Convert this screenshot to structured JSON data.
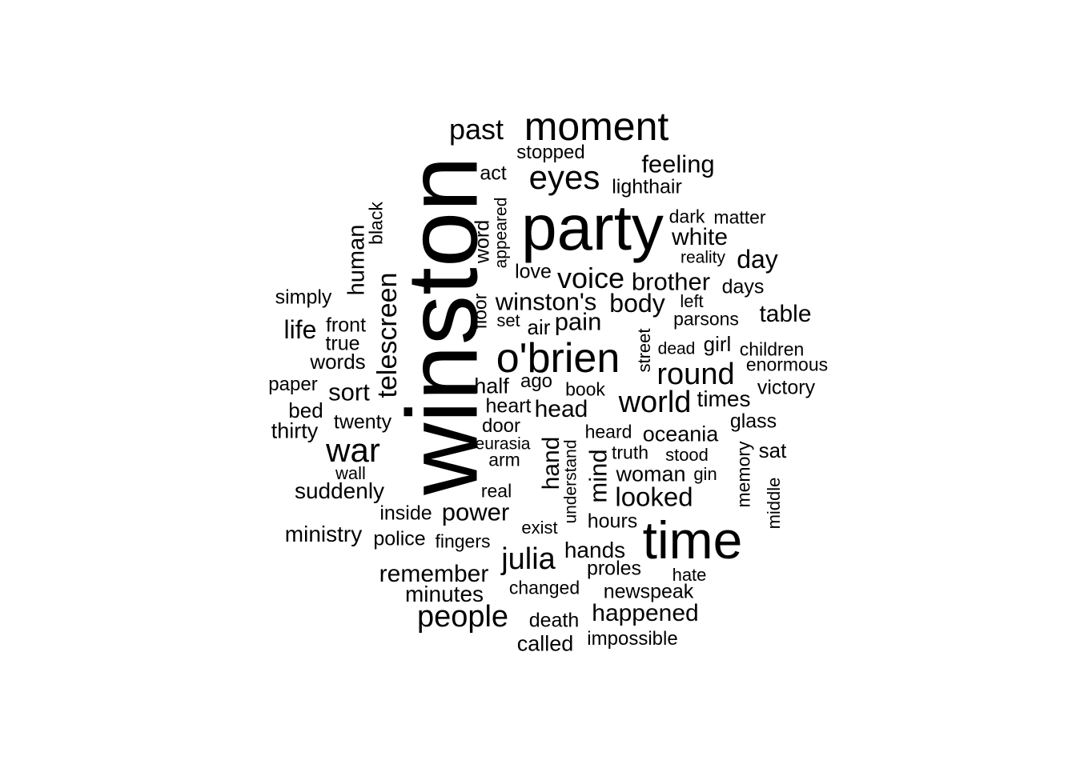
{
  "words": [
    {
      "text": "winston",
      "weight": 100,
      "rotated": true
    },
    {
      "text": "party",
      "weight": 60
    },
    {
      "text": "time",
      "weight": 55
    },
    {
      "text": "moment",
      "weight": 45
    },
    {
      "text": "o'brien",
      "weight": 48
    },
    {
      "text": "eyes",
      "weight": 38
    },
    {
      "text": "past",
      "weight": 32
    },
    {
      "text": "war",
      "weight": 38
    },
    {
      "text": "telescreen",
      "weight": 30,
      "rotated": true
    },
    {
      "text": "people",
      "weight": 34
    },
    {
      "text": "julia",
      "weight": 33
    },
    {
      "text": "world",
      "weight": 34
    },
    {
      "text": "round",
      "weight": 34
    },
    {
      "text": "voice",
      "weight": 32
    },
    {
      "text": "feeling",
      "weight": 28
    },
    {
      "text": "lighthair",
      "weight": 22
    },
    {
      "text": "stopped",
      "weight": 22
    },
    {
      "text": "act",
      "weight": 22
    },
    {
      "text": "dark",
      "weight": 21
    },
    {
      "text": "matter",
      "weight": 20
    },
    {
      "text": "white",
      "weight": 27
    },
    {
      "text": "reality",
      "weight": 19
    },
    {
      "text": "day",
      "weight": 29
    },
    {
      "text": "brother",
      "weight": 28
    },
    {
      "text": "days",
      "weight": 22
    },
    {
      "text": "body",
      "weight": 29
    },
    {
      "text": "left",
      "weight": 20
    },
    {
      "text": "parsons",
      "weight": 21
    },
    {
      "text": "table",
      "weight": 27
    },
    {
      "text": "winston's",
      "weight": 28
    },
    {
      "text": "pain",
      "weight": 28
    },
    {
      "text": "air",
      "weight": 24
    },
    {
      "text": "set",
      "weight": 20
    },
    {
      "text": "floor",
      "weight": 21,
      "rotated": true
    },
    {
      "text": "love",
      "weight": 22
    },
    {
      "text": "word",
      "weight": 22,
      "rotated": true
    },
    {
      "text": "appeared",
      "weight": 19,
      "rotated": true
    },
    {
      "text": "human",
      "weight": 26,
      "rotated": true
    },
    {
      "text": "black",
      "weight": 21,
      "rotated": true
    },
    {
      "text": "simply",
      "weight": 22
    },
    {
      "text": "life",
      "weight": 28
    },
    {
      "text": "front",
      "weight": 23
    },
    {
      "text": "true",
      "weight": 23
    },
    {
      "text": "words",
      "weight": 23
    },
    {
      "text": "paper",
      "weight": 21
    },
    {
      "text": "sort",
      "weight": 28
    },
    {
      "text": "bed",
      "weight": 24
    },
    {
      "text": "thirty",
      "weight": 24
    },
    {
      "text": "twenty",
      "weight": 23
    },
    {
      "text": "street",
      "weight": 20,
      "rotated": true
    },
    {
      "text": "dead",
      "weight": 19
    },
    {
      "text": "girl",
      "weight": 23
    },
    {
      "text": "children",
      "weight": 20
    },
    {
      "text": "enormous",
      "weight": 21
    },
    {
      "text": "victory",
      "weight": 23
    },
    {
      "text": "times",
      "weight": 25
    },
    {
      "text": "book",
      "weight": 21
    },
    {
      "text": "half",
      "weight": 24
    },
    {
      "text": "ago",
      "weight": 22
    },
    {
      "text": "heart",
      "weight": 22
    },
    {
      "text": "head",
      "weight": 27
    },
    {
      "text": "door",
      "weight": 22
    },
    {
      "text": "eurasia",
      "weight": 19
    },
    {
      "text": "arm",
      "weight": 21
    },
    {
      "text": "hand",
      "weight": 27,
      "rotated": true
    },
    {
      "text": "understand",
      "weight": 19,
      "rotated": true
    },
    {
      "text": "mind",
      "weight": 28,
      "rotated": true
    },
    {
      "text": "heard",
      "weight": 21
    },
    {
      "text": "oceania",
      "weight": 24
    },
    {
      "text": "glass",
      "weight": 23
    },
    {
      "text": "truth",
      "weight": 21
    },
    {
      "text": "stood",
      "weight": 20
    },
    {
      "text": "sat",
      "weight": 23
    },
    {
      "text": "memory",
      "weight": 21,
      "rotated": true
    },
    {
      "text": "woman",
      "weight": 24
    },
    {
      "text": "gin",
      "weight": 20
    },
    {
      "text": "middle",
      "weight": 20,
      "rotated": true
    },
    {
      "text": "wall",
      "weight": 20
    },
    {
      "text": "suddenly",
      "weight": 25
    },
    {
      "text": "real",
      "weight": 21
    },
    {
      "text": "looked",
      "weight": 29
    },
    {
      "text": "power",
      "weight": 28
    },
    {
      "text": "inside",
      "weight": 22
    },
    {
      "text": "exist",
      "weight": 20
    },
    {
      "text": "hours",
      "weight": 22
    },
    {
      "text": "ministry",
      "weight": 25
    },
    {
      "text": "police",
      "weight": 22
    },
    {
      "text": "fingers",
      "weight": 21
    },
    {
      "text": "hands",
      "weight": 25
    },
    {
      "text": "remember",
      "weight": 27
    },
    {
      "text": "proles",
      "weight": 22
    },
    {
      "text": "hate",
      "weight": 20
    },
    {
      "text": "minutes",
      "weight": 25
    },
    {
      "text": "changed",
      "weight": 21
    },
    {
      "text": "newspeak",
      "weight": 22
    },
    {
      "text": "happened",
      "weight": 27
    },
    {
      "text": "death",
      "weight": 22
    },
    {
      "text": "called",
      "weight": 24
    },
    {
      "text": "impossible",
      "weight": 21
    }
  ]
}
